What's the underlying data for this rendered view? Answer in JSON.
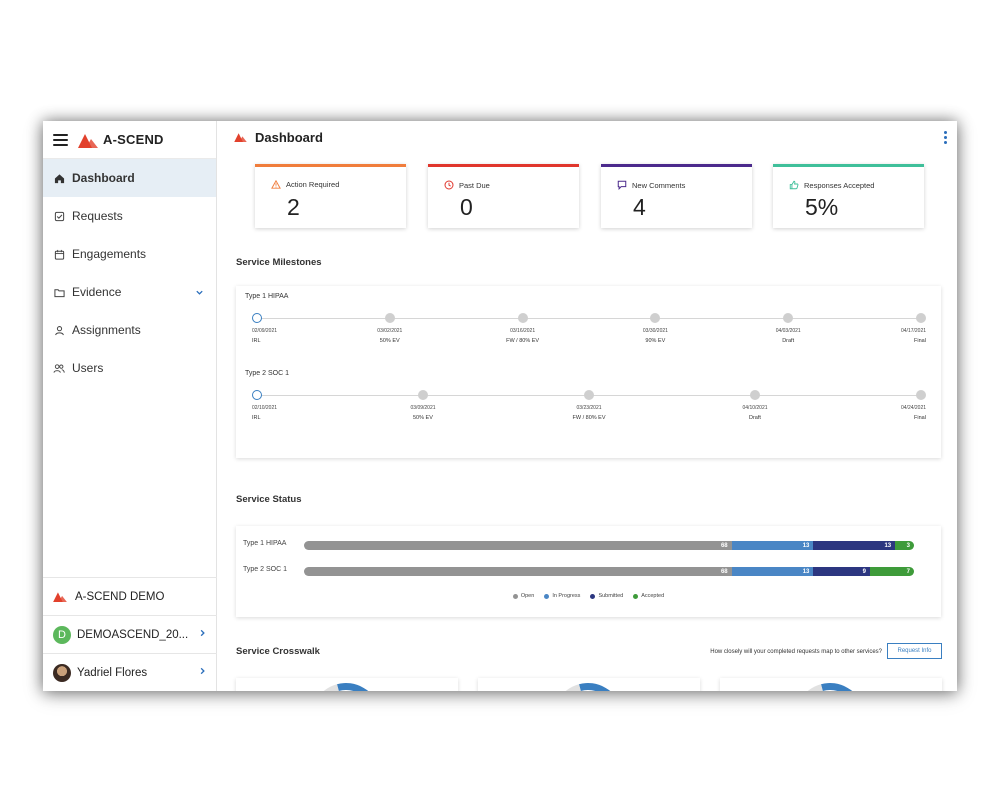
{
  "brand": {
    "name": "A-SCEND",
    "logo_color": "#e2412c"
  },
  "sidebar": {
    "items": [
      {
        "label": "Dashboard",
        "icon": "home-icon",
        "active": true
      },
      {
        "label": "Requests",
        "icon": "checkbox-icon"
      },
      {
        "label": "Engagements",
        "icon": "calendar-icon"
      },
      {
        "label": "Evidence",
        "icon": "folder-icon",
        "expandable": true
      },
      {
        "label": "Assignments",
        "icon": "user-icon"
      },
      {
        "label": "Users",
        "icon": "users-icon"
      }
    ],
    "bottom": {
      "org": "A-SCEND DEMO",
      "account_initial": "D",
      "account": "DEMOASCEND_20...",
      "user": "Yadriel Flores"
    }
  },
  "header": {
    "title": "Dashboard"
  },
  "cards": [
    {
      "label": "Action Required",
      "value": "2",
      "color": "#f07d3c",
      "icon": "warning-icon"
    },
    {
      "label": "Past Due",
      "value": "0",
      "color": "#e0362c",
      "icon": "clock-icon"
    },
    {
      "label": "New Comments",
      "value": "4",
      "color": "#4b2a8c",
      "icon": "comment-icon"
    },
    {
      "label": "Responses Accepted",
      "value": "5%",
      "color": "#3fbf9a",
      "icon": "thumbs-up-icon"
    }
  ],
  "milestones": {
    "title": "Service Milestones",
    "services": [
      {
        "name": "Type 1 HIPAA",
        "points": [
          {
            "date": "02/09/2021",
            "label": "IRL"
          },
          {
            "date": "03/02/2021",
            "label": "50% EV"
          },
          {
            "date": "03/16/2021",
            "label": "FW / 80% EV"
          },
          {
            "date": "03/30/2021",
            "label": "90% EV"
          },
          {
            "date": "04/03/2021",
            "label": "Draft"
          },
          {
            "date": "04/17/2021",
            "label": "Final"
          }
        ]
      },
      {
        "name": "Type 2 SOC 1",
        "points": [
          {
            "date": "02/10/2021",
            "label": "IRL"
          },
          {
            "date": "03/09/2021",
            "label": "50% EV"
          },
          {
            "date": "03/23/2021",
            "label": "FW / 80% EV"
          },
          {
            "date": "04/10/2021",
            "label": "Draft"
          },
          {
            "date": "04/24/2021",
            "label": "Final"
          }
        ]
      }
    ]
  },
  "status": {
    "title": "Service Status",
    "colors": {
      "open": "#939393",
      "in_progress": "#4a86c5",
      "submitted": "#2c3680",
      "accepted": "#3e9b3a"
    },
    "legend": [
      "Open",
      "In Progress",
      "Submitted",
      "Accepted"
    ],
    "rows": [
      {
        "name": "Type 1 HIPAA",
        "open": 68,
        "in_progress": 13,
        "submitted": 13,
        "accepted": 3
      },
      {
        "name": "Type 2 SOC 1",
        "open": 68,
        "in_progress": 13,
        "submitted": 9,
        "accepted": 7
      }
    ]
  },
  "crosswalk": {
    "title": "Service Crosswalk",
    "question": "How closely will your completed requests map to other services?",
    "button": "Request Info"
  }
}
